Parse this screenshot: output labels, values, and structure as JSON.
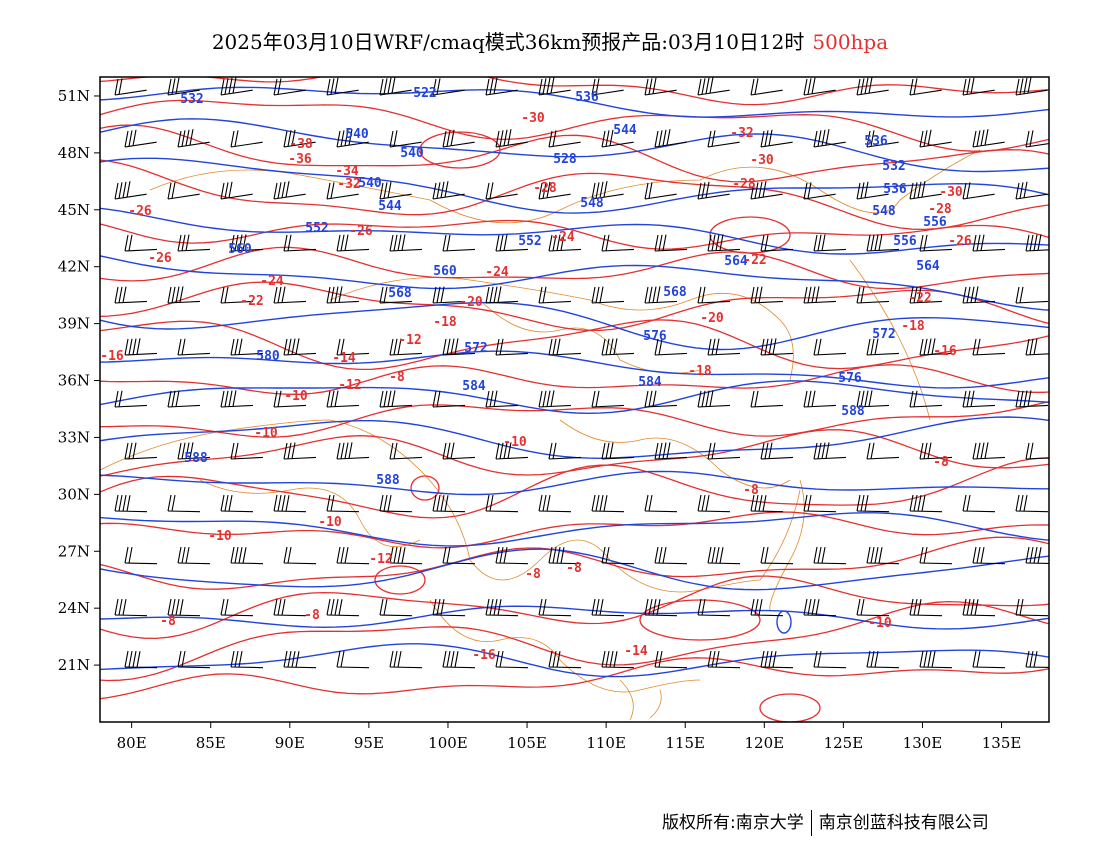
{
  "title": {
    "main": "2025年03月10日WRF/cmaq模式36km预报产品:03月10日12时",
    "level": "500hpa"
  },
  "axes": {
    "lon_labels": [
      "80E",
      "85E",
      "90E",
      "95E",
      "100E",
      "105E",
      "110E",
      "115E",
      "120E",
      "125E",
      "130E",
      "135E"
    ],
    "lon_values": [
      80,
      85,
      90,
      95,
      100,
      105,
      110,
      115,
      120,
      125,
      130,
      135
    ],
    "lat_labels": [
      "51N",
      "48N",
      "45N",
      "42N",
      "39N",
      "36N",
      "33N",
      "30N",
      "27N",
      "24N",
      "21N"
    ],
    "lat_values": [
      51,
      48,
      45,
      42,
      39,
      36,
      33,
      30,
      27,
      24,
      21
    ],
    "lon_range": [
      78,
      138
    ],
    "lat_range": [
      18,
      52
    ]
  },
  "colors": {
    "geopotential": "#2244dd",
    "temperature": "#e53030",
    "boundaries": "#e08a2a",
    "barbs": "#000000"
  },
  "geopotential_labels": [
    "532",
    "522",
    "536",
    "540",
    "544",
    "536",
    "540",
    "528",
    "532",
    "536",
    "540",
    "544",
    "548",
    "548",
    "552",
    "552",
    "556",
    "556",
    "560",
    "560",
    "564",
    "564",
    "568",
    "568",
    "572",
    "572",
    "576",
    "576",
    "580",
    "584",
    "584",
    "588",
    "588",
    "588"
  ],
  "temperature_labels": [
    "-38",
    "-36",
    "-34",
    "-32",
    "-30",
    "-32",
    "-30",
    "-28",
    "-28",
    "-30",
    "-28",
    "-26",
    "-26",
    "-26",
    "-26",
    "-24",
    "-24",
    "-24",
    "-22",
    "-22",
    "-22",
    "-20",
    "-20",
    "-18",
    "-18",
    "-18",
    "-16",
    "-16",
    "-14",
    "-12",
    "-10",
    "-8",
    "-8",
    "-12",
    "-10",
    "-10",
    "-10",
    "-10",
    "-12",
    "-8",
    "-8",
    "-8",
    "-8",
    "-16",
    "-14",
    "-10",
    "-8"
  ],
  "footer": {
    "owner1": "版权所有:南京大学",
    "owner2": "南京创蓝科技有限公司"
  }
}
